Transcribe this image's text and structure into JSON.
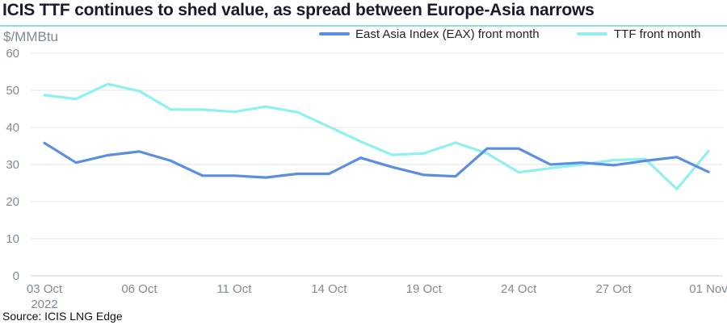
{
  "page_title": "ICIS TTF continues to shed value, as spread between Europe-Asia narrows",
  "source": "Source: ICIS LNG Edge",
  "colors": {
    "eax": "#5b8ee0",
    "ttf": "#8ff0ef",
    "axis": "#7d8b98",
    "grid": "#e4e4e4",
    "rule": "#8ee0d0"
  },
  "chart_data": {
    "type": "line",
    "title": "ICIS TTF continues to shed value, as spread between Europe-Asia narrows",
    "ylabel": "$/MMBtu",
    "xlabel": "",
    "ylim": [
      0,
      60
    ],
    "yticks": [
      "0",
      "10",
      "20",
      "30",
      "40",
      "50",
      "60"
    ],
    "x": [
      "03 Oct 2022",
      "04 Oct",
      "05 Oct",
      "06 Oct",
      "07 Oct",
      "10 Oct",
      "11 Oct",
      "12 Oct",
      "13 Oct",
      "14 Oct",
      "17 Oct",
      "18 Oct",
      "19 Oct",
      "20 Oct",
      "21 Oct",
      "24 Oct",
      "25 Oct",
      "26 Oct",
      "27 Oct",
      "28 Oct",
      "31 Oct",
      "01 Nov"
    ],
    "xtick_labels": [
      {
        "index": 0,
        "line1": "03 Oct",
        "line2": "2022"
      },
      {
        "index": 3,
        "line1": "06 Oct",
        "line2": ""
      },
      {
        "index": 6,
        "line1": "11 Oct",
        "line2": ""
      },
      {
        "index": 9,
        "line1": "14 Oct",
        "line2": ""
      },
      {
        "index": 12,
        "line1": "19 Oct",
        "line2": ""
      },
      {
        "index": 15,
        "line1": "24 Oct",
        "line2": ""
      },
      {
        "index": 18,
        "line1": "27 Oct",
        "line2": ""
      },
      {
        "index": 21,
        "line1": "01 Nov",
        "line2": ""
      }
    ],
    "grid": "horizontal",
    "legend_position": "top-right",
    "series": [
      {
        "name": "East Asia Index (EAX) front month",
        "color": "#5b8ee0",
        "values": [
          35.8,
          30.5,
          32.5,
          33.5,
          31.0,
          27.0,
          27.0,
          26.5,
          27.5,
          27.5,
          31.8,
          29.3,
          27.2,
          26.8,
          34.3,
          34.3,
          30.0,
          30.5,
          29.8,
          31.0,
          32.0,
          28.0
        ]
      },
      {
        "name": "TTF front month",
        "color": "#8ff0ef",
        "values": [
          48.7,
          47.7,
          51.7,
          49.8,
          44.8,
          44.8,
          44.2,
          45.6,
          44.1,
          40.2,
          36.2,
          32.6,
          33.0,
          35.9,
          33.0,
          27.9,
          29.0,
          30.0,
          31.2,
          31.5,
          23.4,
          33.6
        ]
      }
    ]
  }
}
